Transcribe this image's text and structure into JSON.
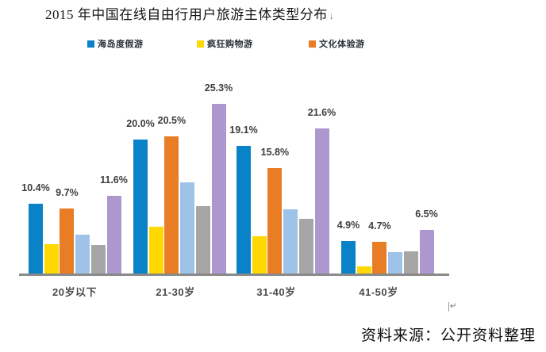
{
  "title": {
    "text": "2015 年中国在线自由行用户旅游主体类型分布",
    "mark": "↓"
  },
  "legend": [
    {
      "label": "海岛度假游",
      "color": "#0A82C8"
    },
    {
      "label": "疯狂购物游",
      "color": "#FFD800"
    },
    {
      "label": "文化体验游",
      "color": "#E97D26"
    }
  ],
  "chart_data": {
    "type": "bar",
    "title": "2015 年中国在线自由行用户旅游主体类型分布",
    "categories": [
      "20岁以下",
      "21-30岁",
      "31-40岁",
      "41-50岁"
    ],
    "series": [
      {
        "key": "blue",
        "name": "海岛度假游",
        "color": "#0A82C8",
        "values": [
          10.4,
          20.0,
          19.1,
          4.9
        ],
        "show_labels": true
      },
      {
        "key": "yellow",
        "name": "疯狂购物游",
        "color": "#FFD800",
        "values": [
          4.4,
          7.0,
          5.6,
          1.1
        ],
        "show_labels": false
      },
      {
        "key": "orange",
        "name": "文化体验游",
        "color": "#E97D26",
        "values": [
          9.7,
          20.5,
          15.8,
          4.7
        ],
        "show_labels": true
      },
      {
        "key": "lightblue",
        "name": "",
        "color": "#9FC3E8",
        "values": [
          5.8,
          13.6,
          9.6,
          3.2
        ],
        "show_labels": false
      },
      {
        "key": "gray",
        "name": "",
        "color": "#A6A6A6",
        "values": [
          4.3,
          10.1,
          8.2,
          3.3
        ],
        "show_labels": false
      },
      {
        "key": "purple",
        "name": "",
        "color": "#AC97CE",
        "values": [
          11.6,
          25.3,
          21.6,
          6.5
        ],
        "show_labels": true
      }
    ],
    "label_format": "{value}%",
    "ylim": [
      0,
      29
    ],
    "grid": false,
    "legend_position": "top"
  },
  "paragraph_mark": "↵",
  "source": {
    "text": "资料来源：公开资料整理"
  }
}
